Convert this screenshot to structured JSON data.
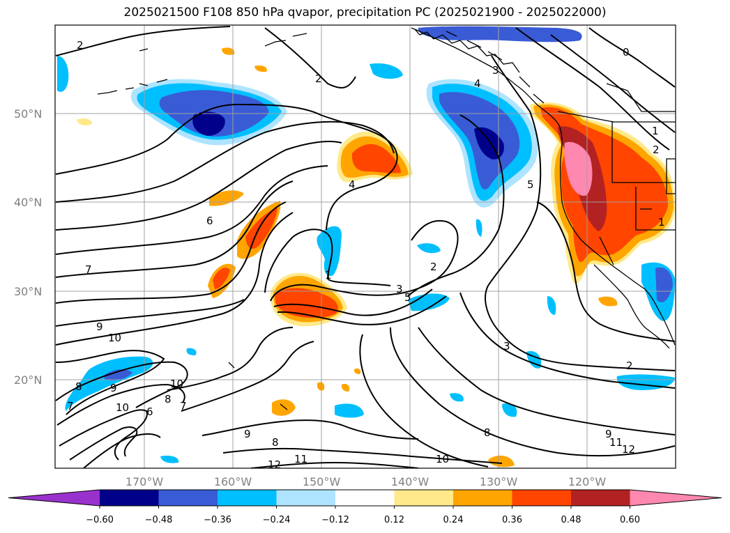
{
  "title": "2025021500 F108 850 hPa qvapor, precipitation PC (2025021900 - 2025022000)",
  "lat_labels": [
    "50°N",
    "40°N",
    "30°N",
    "20°N"
  ],
  "lon_labels": [
    "170°W",
    "160°W",
    "150°W",
    "140°W",
    "130°W",
    "120°W"
  ],
  "contour_labels": [
    "2",
    "2",
    "0",
    "1",
    "2",
    "3",
    "4",
    "4",
    "5",
    "6",
    "7",
    "1",
    "2",
    "3",
    "5",
    "3",
    "2",
    "9",
    "10",
    "8",
    "9",
    "7",
    "10",
    "10",
    "6",
    "8",
    "7",
    "9",
    "8",
    "11",
    "12",
    "8",
    "10",
    "9",
    "11",
    "12",
    "1"
  ],
  "colorbar": {
    "ticks": [
      "−0.60",
      "−0.48",
      "−0.36",
      "−0.24",
      "−0.12",
      "0.12",
      "0.24",
      "0.36",
      "0.48",
      "0.60"
    ],
    "colors": [
      "#9932cc",
      "#00008b",
      "#3a5bd6",
      "#00bfff",
      "#aee4ff",
      "#ffffff",
      "#ffe98a",
      "#ffa500",
      "#ff4500",
      "#b22222",
      "#ff88b0"
    ]
  },
  "feature_colors": {
    "pos_light": "#ffe98a",
    "pos_orange": "#ffa500",
    "pos_red": "#ff4500",
    "pos_darkred": "#b22222",
    "pos_pink": "#ff88b0",
    "neg_light": "#aee4ff",
    "neg_sky": "#00bfff",
    "neg_blue": "#3a5bd6",
    "neg_navy": "#00008b"
  }
}
